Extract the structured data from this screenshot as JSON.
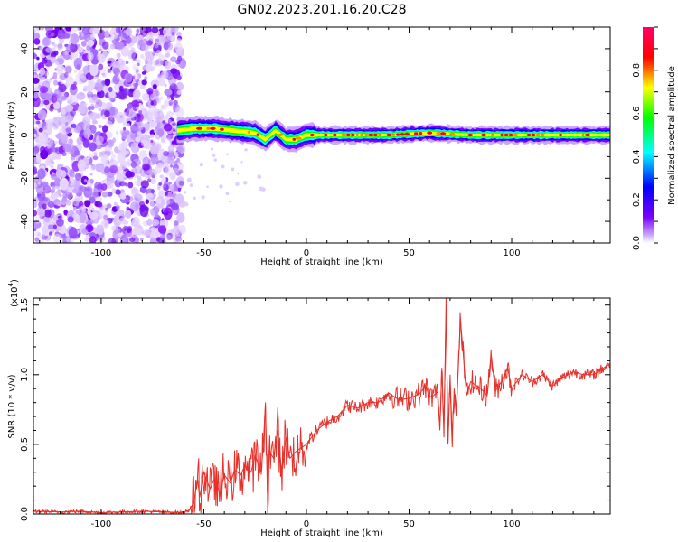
{
  "title": "GN02.2023.201.16.20.C28",
  "chart_data": [
    {
      "type": "heatmap",
      "title": "",
      "xlabel": "Height of straight line (km)",
      "ylabel": "Frequency (Hz)",
      "xlim": [
        -133,
        148
      ],
      "ylim": [
        -50,
        50
      ],
      "x_ticks": [
        -100,
        -50,
        0,
        50,
        100
      ],
      "x_tick_labels": [
        "-100",
        "-50",
        "0",
        "50",
        "100"
      ],
      "y_ticks": [
        -40,
        -20,
        0,
        20,
        40
      ],
      "y_tick_labels": [
        "-40",
        "-20",
        "0",
        "20",
        "40"
      ],
      "colorbar": {
        "label": "Normalized spectral amplitude",
        "range": [
          0,
          1
        ],
        "ticks": [
          0.0,
          0.2,
          0.4,
          0.6,
          0.8
        ],
        "tick_labels": [
          "0.0",
          "0.2",
          "0.4",
          "0.6",
          "0.8"
        ],
        "colors": [
          "#ffffff",
          "#7b00ff",
          "#0000ff",
          "#00ffff",
          "#00ff00",
          "#ffff00",
          "#ff0000",
          "#ff0066"
        ]
      },
      "noise_region_x": [
        -133,
        -63
      ],
      "signal_track": {
        "x": [
          -63,
          -55,
          -45,
          -35,
          -25,
          -20,
          -15,
          -10,
          -5,
          0,
          5,
          20,
          40,
          60,
          80,
          100,
          120,
          148
        ],
        "frequency": [
          2,
          3,
          3,
          2,
          1,
          -2,
          2,
          -2,
          -2,
          0,
          0,
          0,
          0,
          1,
          0,
          0,
          0,
          0
        ]
      },
      "reference_line_frequency": 0
    },
    {
      "type": "line",
      "title": "",
      "xlabel": "Height of straight line (km)",
      "ylabel": "SNR (10 * v/v)",
      "y_multiplier_label": "(x10",
      "y_multiplier_exponent": "4",
      "xlim": [
        -133,
        148
      ],
      "ylim": [
        0,
        1.55
      ],
      "x_ticks": [
        -100,
        -50,
        0,
        50,
        100
      ],
      "x_tick_labels": [
        "-100",
        "-50",
        "0",
        "50",
        "100"
      ],
      "y_ticks": [
        0,
        0.5,
        1.0,
        1.5
      ],
      "y_tick_labels": [
        "0.0",
        "0.5",
        "1.0",
        "1.5"
      ],
      "color": "#e8302a",
      "series": [
        {
          "x": [
            -133,
            -120,
            -110,
            -100,
            -90,
            -80,
            -70,
            -60,
            -57,
            -55,
            -53,
            -52,
            -50,
            -47,
            -45,
            -42,
            -40,
            -37,
            -35,
            -32,
            -30,
            -27,
            -25,
            -22,
            -21,
            -20,
            -19,
            -18,
            -16,
            -14,
            -12,
            -10,
            -8,
            -5,
            0,
            5,
            10,
            15,
            20,
            25,
            30,
            35,
            40,
            45,
            50,
            55,
            58,
            60,
            62,
            64,
            65,
            66,
            67,
            68,
            69,
            70,
            71,
            72,
            73,
            75,
            78,
            80,
            85,
            88,
            90,
            92,
            95,
            98,
            100,
            105,
            110,
            115,
            120,
            125,
            130,
            135,
            140,
            145,
            148
          ],
          "y": [
            0.02,
            0.015,
            0.02,
            0.01,
            0.015,
            0.02,
            0.015,
            0.01,
            0.03,
            0.08,
            0.25,
            0.12,
            0.3,
            0.18,
            0.25,
            0.15,
            0.28,
            0.22,
            0.32,
            0.28,
            0.35,
            0.3,
            0.42,
            0.3,
            0.5,
            0.8,
            0.15,
            0.45,
            0.4,
            0.6,
            0.3,
            0.55,
            0.4,
            0.45,
            0.5,
            0.6,
            0.66,
            0.7,
            0.78,
            0.76,
            0.8,
            0.8,
            0.87,
            0.82,
            0.83,
            0.86,
            0.92,
            0.84,
            0.85,
            0.88,
            0.6,
            1.05,
            0.55,
            1.55,
            0.5,
            1.0,
            0.55,
            0.9,
            0.7,
            1.4,
            0.85,
            0.95,
            0.9,
            0.85,
            1.15,
            0.88,
            0.95,
            1.05,
            0.9,
            1.0,
            0.95,
            1.0,
            0.92,
            0.98,
            1.02,
            1.0,
            1.0,
            1.05,
            1.08
          ]
        }
      ]
    }
  ]
}
